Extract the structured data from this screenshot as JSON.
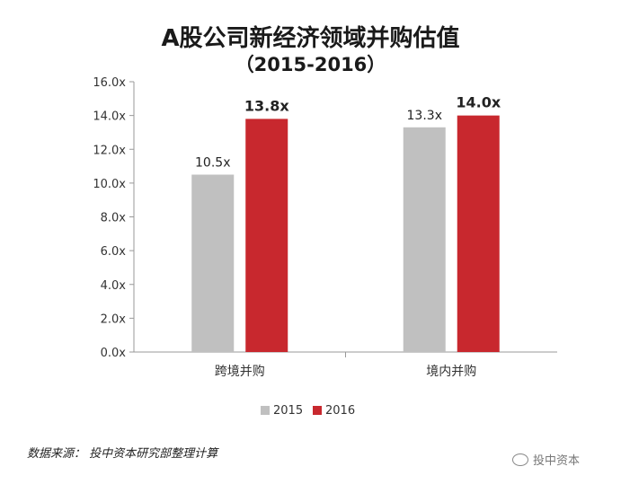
{
  "chart_data": {
    "type": "bar",
    "title": "A股公司新经济领域并购估值",
    "subtitle": "（2015-2016）",
    "categories": [
      "跨境并购",
      "境内并购"
    ],
    "series": [
      {
        "name": "2015",
        "values": [
          10.5,
          13.3
        ],
        "labels": [
          "10.5x",
          "13.3x"
        ],
        "color": "#c0c0c0",
        "label_bold": false
      },
      {
        "name": "2016",
        "values": [
          13.8,
          14.0
        ],
        "labels": [
          "13.8x",
          "14.0x"
        ],
        "color": "#c8282e",
        "label_bold": true
      }
    ],
    "ylim": [
      0,
      16
    ],
    "yticks": [
      0,
      2,
      4,
      6,
      8,
      10,
      12,
      14,
      16
    ],
    "ytick_labels": [
      "0.0x",
      "2.0x",
      "4.0x",
      "6.0x",
      "8.0x",
      "10.0x",
      "12.0x",
      "14.0x",
      "16.0x"
    ],
    "xlabel": "",
    "ylabel": "",
    "grid": false,
    "legend_position": "bottom-center"
  },
  "source": "数据来源： 投中资本研究部整理计算",
  "watermark": "投中资本"
}
